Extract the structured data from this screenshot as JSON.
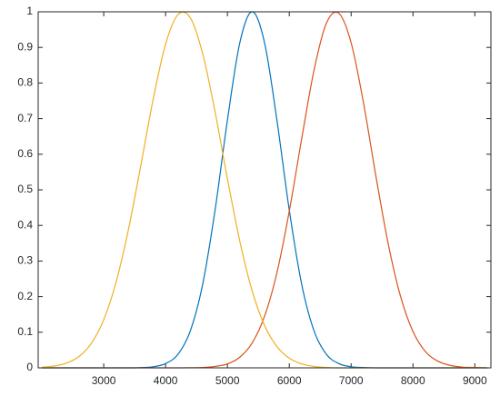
{
  "chart_data": {
    "type": "line",
    "x": [
      2000,
      2200,
      2400,
      2600,
      2800,
      3000,
      3200,
      3400,
      3600,
      3800,
      4000,
      4200,
      4400,
      4600,
      4800,
      5000,
      5200,
      5400,
      5600,
      5800,
      6000,
      6200,
      6400,
      6600,
      6800,
      7000,
      7200,
      7400,
      7600,
      7800,
      8000,
      8200,
      8400,
      8600,
      8800,
      9000,
      9200
    ],
    "series": [
      {
        "color": "#0072bd",
        "values": [
          0,
          0,
          0,
          0,
          0,
          0,
          0,
          0,
          0.0007,
          0.003,
          0.012,
          0.038,
          0.104,
          0.235,
          0.443,
          0.696,
          0.913,
          1,
          0.913,
          0.696,
          0.443,
          0.235,
          0.104,
          0.038,
          0.012,
          0.003,
          0.001,
          0,
          0,
          0,
          0,
          0,
          0,
          0,
          0,
          0,
          0
        ]
      },
      {
        "color": "#d95319",
        "values": [
          0,
          0,
          0,
          0,
          0,
          0,
          0,
          0,
          0,
          0,
          0,
          0,
          0.0003,
          0.001,
          0.004,
          0.011,
          0.03,
          0.07,
          0.145,
          0.267,
          0.44,
          0.643,
          0.836,
          0.968,
          0.996,
          0.913,
          0.744,
          0.539,
          0.348,
          0.2,
          0.102,
          0.046,
          0.019,
          0.007,
          0.002,
          0.001,
          0
        ]
      },
      {
        "color": "#edb120",
        "values": [
          0.0018,
          0.0051,
          0.0134,
          0.0319,
          0.069,
          0.135,
          0.241,
          0.389,
          0.569,
          0.755,
          0.909,
          0.992,
          0.983,
          0.882,
          0.719,
          0.531,
          0.356,
          0.216,
          0.119,
          0.06,
          0.027,
          0.011,
          0.004,
          0.001,
          0,
          0,
          0,
          0,
          0,
          0,
          0,
          0,
          0,
          0,
          0,
          0,
          0
        ]
      }
    ],
    "xlim": [
      1940,
      9260
    ],
    "xticks": [
      3000,
      4000,
      5000,
      6000,
      7000,
      8000,
      9000
    ],
    "ylim": [
      0,
      1
    ],
    "yticks": [
      0,
      0.1,
      0.2,
      0.3,
      0.4,
      0.5,
      0.6,
      0.7,
      0.8,
      0.9,
      1
    ]
  }
}
